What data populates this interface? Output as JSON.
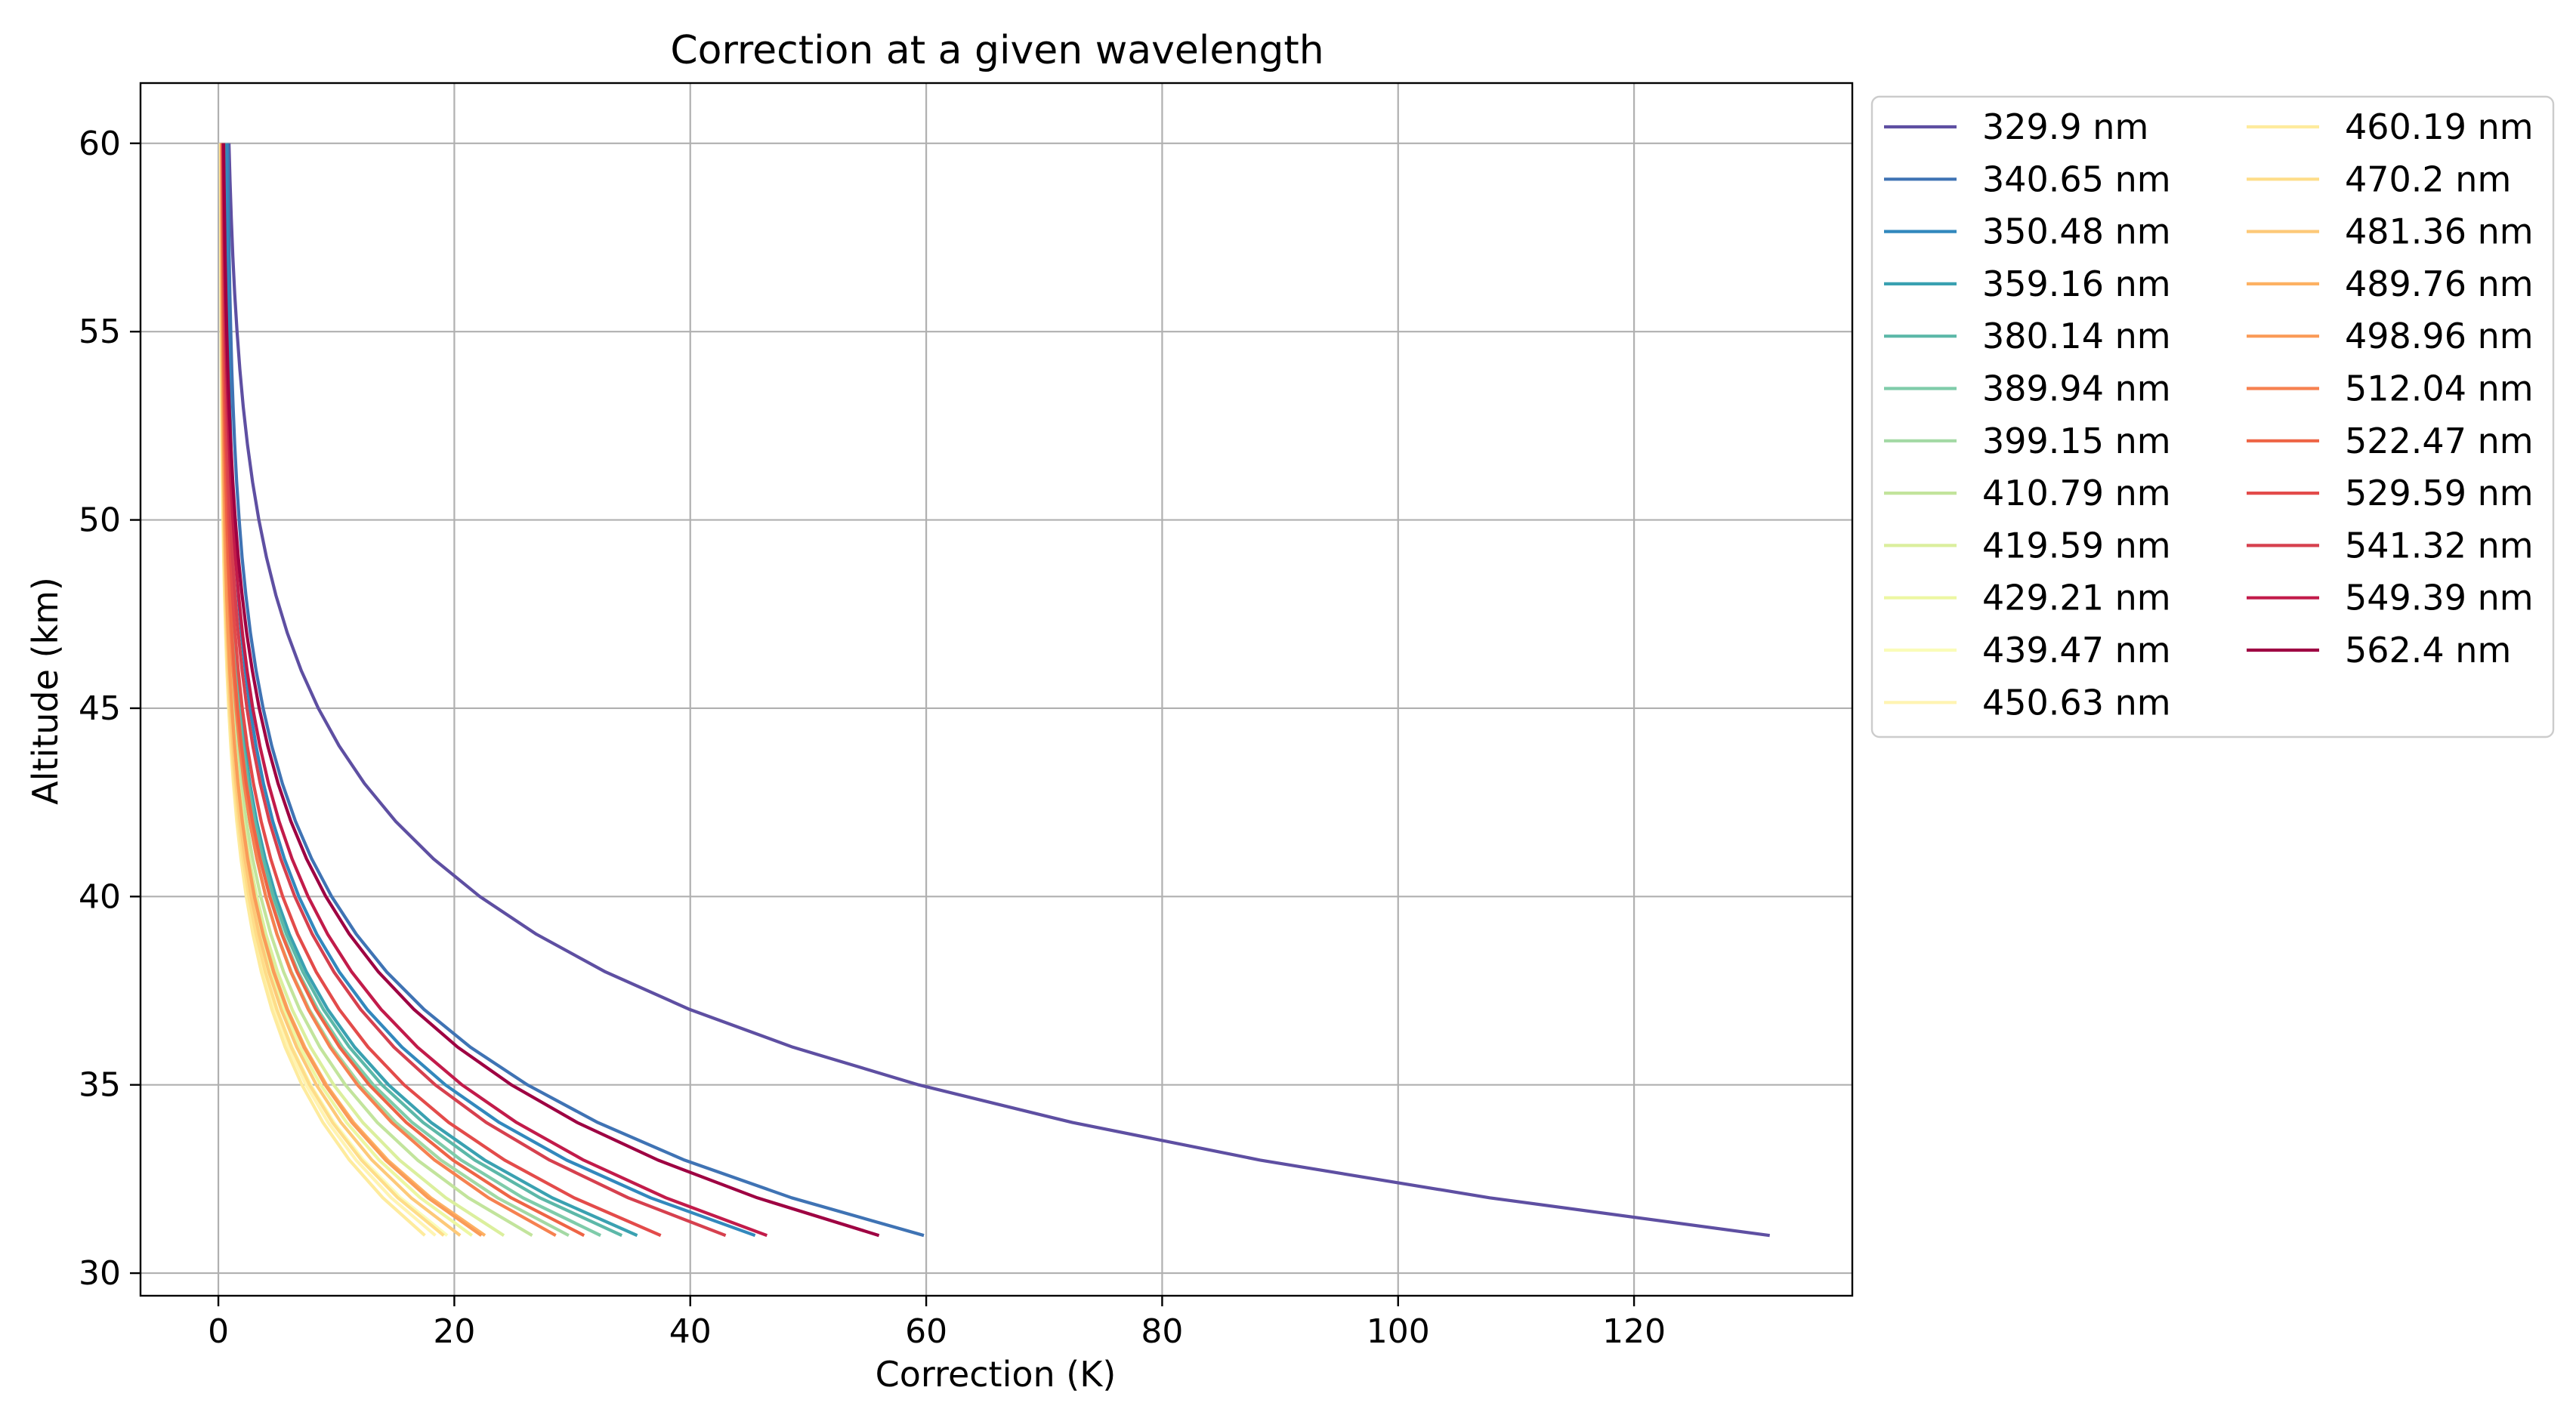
{
  "chart_data": {
    "type": "line",
    "title": "Correction at a given wavelength",
    "xlabel": "Correction (K)",
    "ylabel": "Altitude (km)",
    "xlim": [
      -6.6,
      138.5
    ],
    "ylim": [
      29.4,
      61.6
    ],
    "xticks": [
      0,
      20,
      40,
      60,
      80,
      100,
      120
    ],
    "yticks": [
      30,
      35,
      40,
      45,
      50,
      55,
      60
    ],
    "xtick_labels": [
      "0",
      "20",
      "40",
      "60",
      "80",
      "100",
      "120"
    ],
    "ytick_labels": [
      "30",
      "35",
      "40",
      "45",
      "50",
      "55",
      "60"
    ],
    "grid": true,
    "legend_position": "outside right, top, two columns",
    "altitudes": [
      31,
      32,
      33,
      34,
      35,
      36,
      37,
      38,
      39,
      40,
      41,
      42,
      43,
      44,
      45,
      46,
      47,
      48,
      49,
      50,
      51,
      52,
      53,
      54,
      55,
      56,
      57,
      58,
      59,
      60
    ],
    "series": [
      {
        "name": "329.9 nm",
        "color": "#5e4fa2",
        "final": 131.5,
        "top": 0.9,
        "k": 0.2
      },
      {
        "name": "340.65 nm",
        "color": "#3f73b4",
        "final": 59.8,
        "top": 0.8,
        "k": 0.21
      },
      {
        "name": "350.48 nm",
        "color": "#3288bd",
        "final": 45.5,
        "top": 0.7,
        "k": 0.22
      },
      {
        "name": "359.16 nm",
        "color": "#3aa1b1",
        "final": 35.5,
        "top": 0.5,
        "k": 0.23
      },
      {
        "name": "380.14 nm",
        "color": "#5cb8a8",
        "final": 34.2,
        "top": 0.45,
        "k": 0.23
      },
      {
        "name": "389.94 nm",
        "color": "#7fccaa",
        "final": 32.4,
        "top": 0.4,
        "k": 0.23
      },
      {
        "name": "399.15 nm",
        "color": "#a3d9a4",
        "final": 29.7,
        "top": 0.35,
        "k": 0.23
      },
      {
        "name": "410.79 nm",
        "color": "#c2e49c",
        "final": 26.6,
        "top": 0.3,
        "k": 0.23
      },
      {
        "name": "419.59 nm",
        "color": "#dbef9d",
        "final": 24.2,
        "top": 0.25,
        "k": 0.23
      },
      {
        "name": "429.21 nm",
        "color": "#edf7a2",
        "final": 21.5,
        "top": 0.2,
        "k": 0.23
      },
      {
        "name": "439.47 nm",
        "color": "#fafcb8",
        "final": 19.4,
        "top": 0.18,
        "k": 0.23
      },
      {
        "name": "450.63 nm",
        "color": "#fff4b2",
        "final": 18.4,
        "top": 0.18,
        "k": 0.23
      },
      {
        "name": "460.19 nm",
        "color": "#feeb9d",
        "final": 17.5,
        "top": 0.2,
        "k": 0.23
      },
      {
        "name": "470.2 nm",
        "color": "#fedd89",
        "final": 19.1,
        "top": 0.22,
        "k": 0.23
      },
      {
        "name": "481.36 nm",
        "color": "#fdc978",
        "final": 20.5,
        "top": 0.25,
        "k": 0.23
      },
      {
        "name": "489.76 nm",
        "color": "#fdb163",
        "final": 22.6,
        "top": 0.28,
        "k": 0.23
      },
      {
        "name": "498.96 nm",
        "color": "#fa9b58",
        "final": 22.3,
        "top": 0.3,
        "k": 0.23
      },
      {
        "name": "512.04 nm",
        "color": "#f68150",
        "final": 28.6,
        "top": 0.32,
        "k": 0.225
      },
      {
        "name": "522.47 nm",
        "color": "#ee6445",
        "final": 31.0,
        "top": 0.35,
        "k": 0.225
      },
      {
        "name": "529.59 nm",
        "color": "#e34b4a",
        "final": 37.5,
        "top": 0.38,
        "k": 0.22
      },
      {
        "name": "541.32 nm",
        "color": "#d6404e",
        "final": 43.0,
        "top": 0.4,
        "k": 0.215
      },
      {
        "name": "549.39 nm",
        "color": "#c21b4a",
        "final": 46.5,
        "top": 0.42,
        "k": 0.205
      },
      {
        "name": "562.4 nm",
        "color": "#9e0142",
        "final": 56.0,
        "top": 0.45,
        "k": 0.205
      }
    ]
  }
}
